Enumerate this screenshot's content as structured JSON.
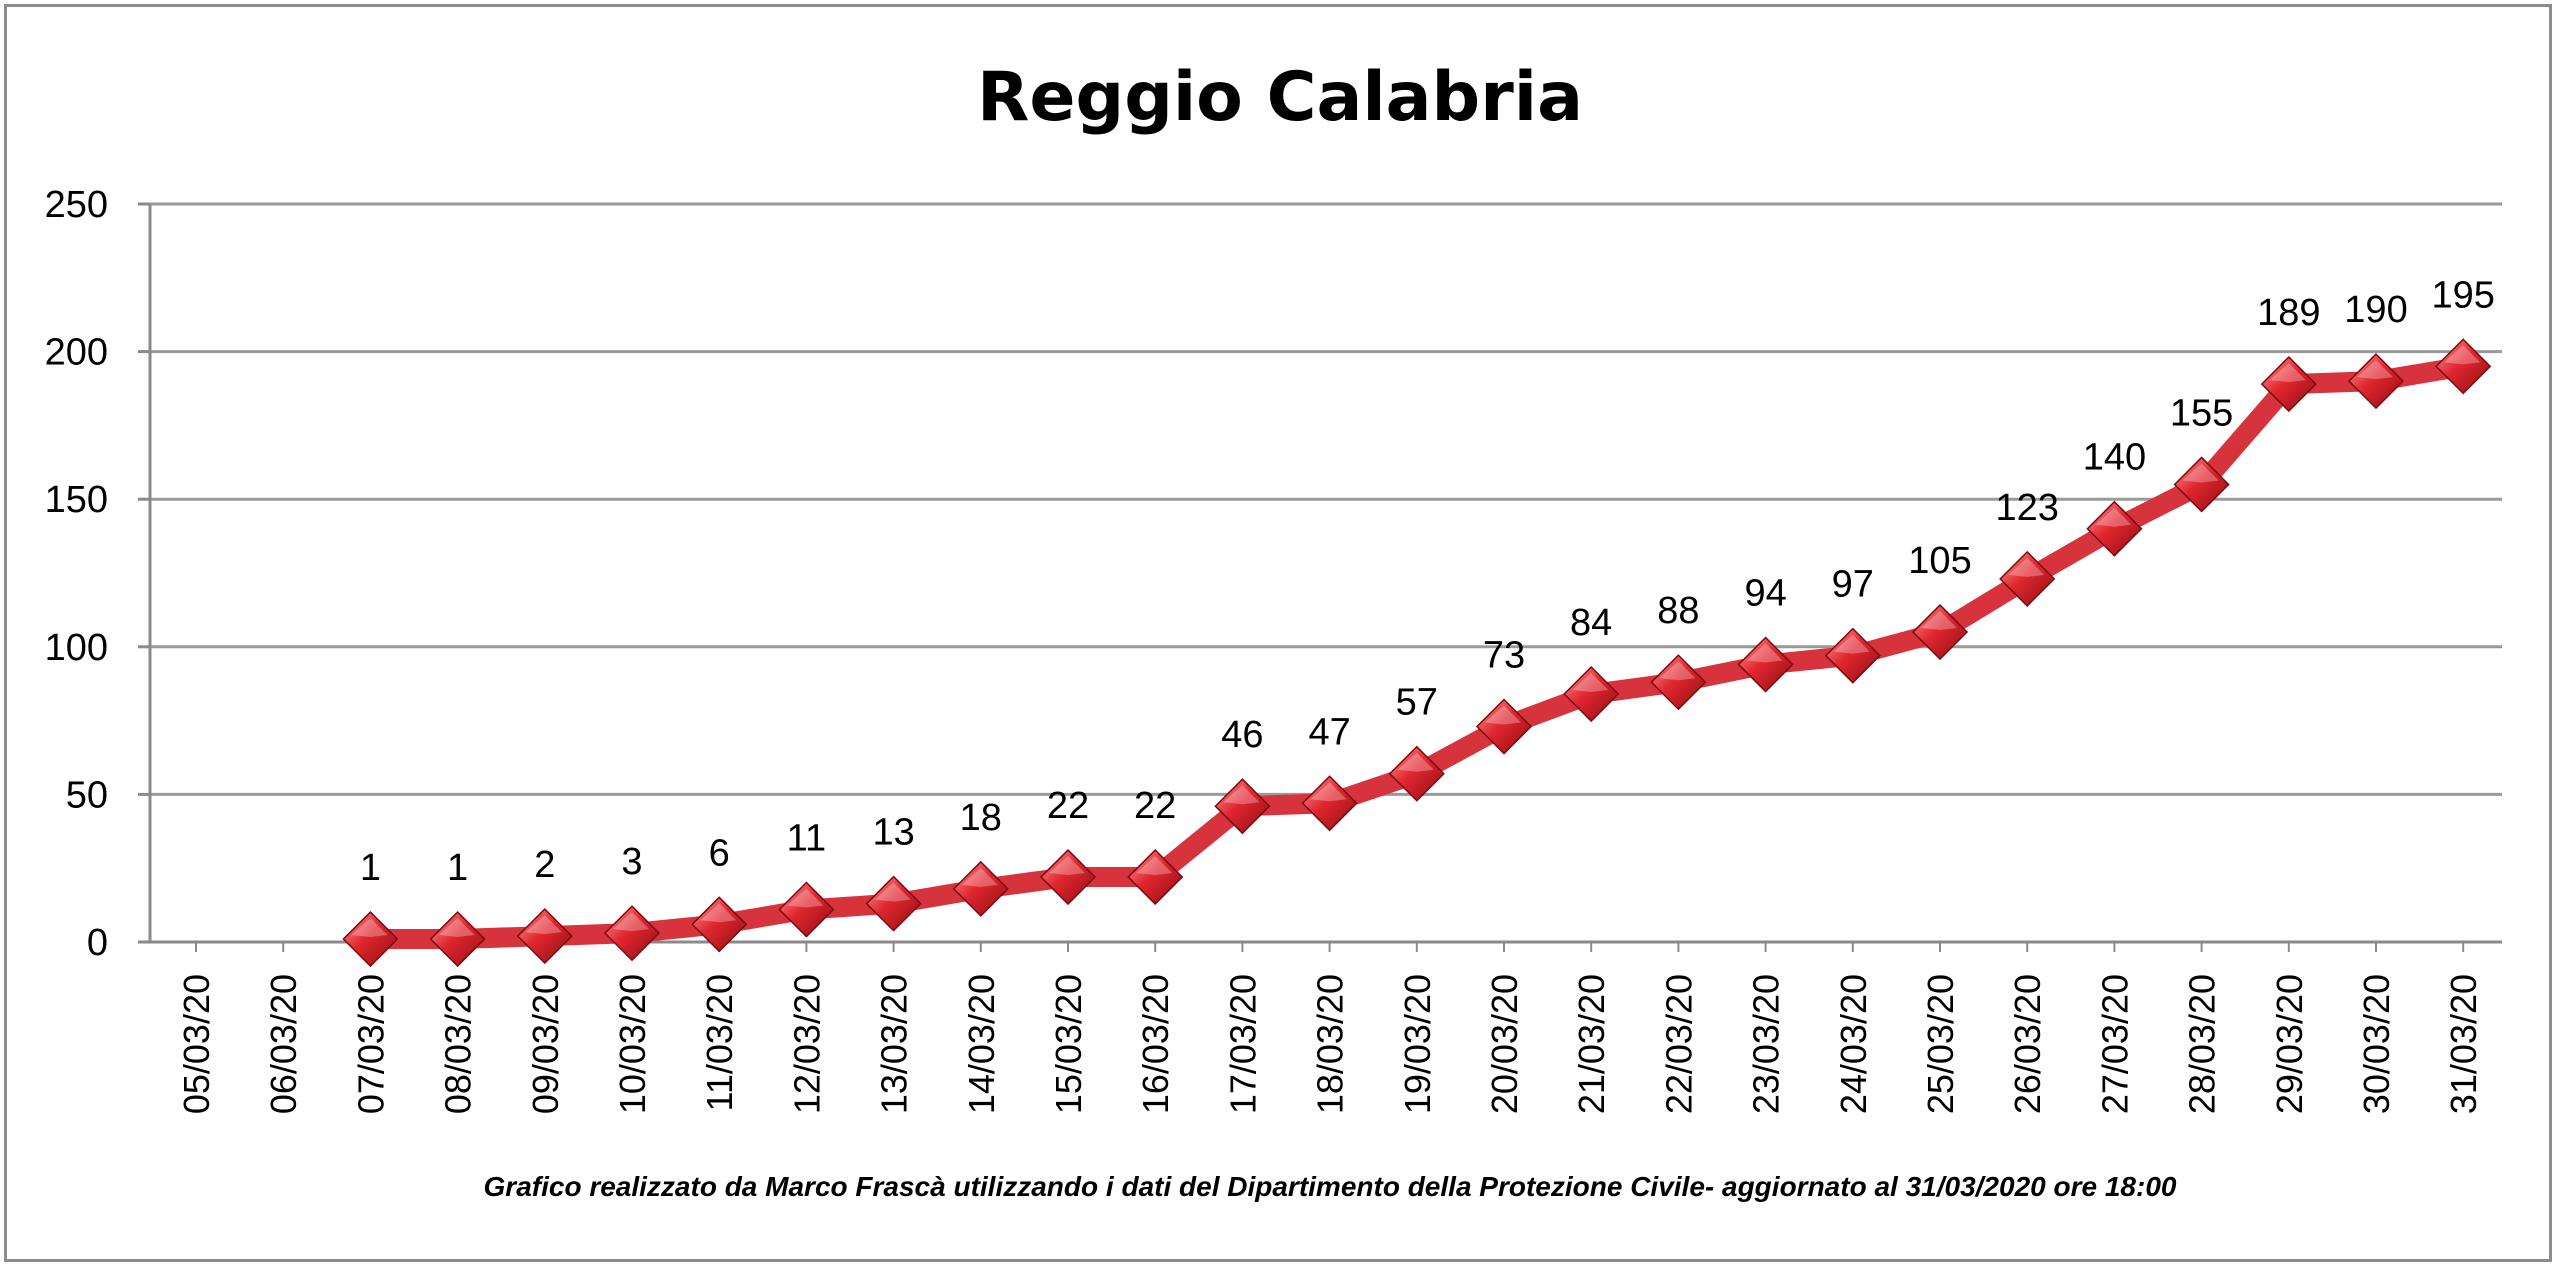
{
  "chart_data": {
    "type": "line",
    "title": "Reggio Calabria",
    "xlabel": "",
    "ylabel": "",
    "ylim": [
      0,
      250
    ],
    "yticks": [
      0,
      50,
      100,
      150,
      200,
      250
    ],
    "grid": true,
    "legend": "none",
    "categories": [
      "05/03/20",
      "06/03/20",
      "07/03/20",
      "08/03/20",
      "09/03/20",
      "10/03/20",
      "11/03/20",
      "12/03/20",
      "13/03/20",
      "14/03/20",
      "15/03/20",
      "16/03/20",
      "17/03/20",
      "18/03/20",
      "19/03/20",
      "20/03/20",
      "21/03/20",
      "22/03/20",
      "23/03/20",
      "24/03/20",
      "25/03/20",
      "26/03/20",
      "27/03/20",
      "28/03/20",
      "29/03/20",
      "30/03/20",
      "31/03/20"
    ],
    "series": [
      {
        "values": [
          null,
          null,
          1,
          1,
          2,
          3,
          6,
          11,
          13,
          18,
          22,
          22,
          46,
          47,
          57,
          73,
          84,
          88,
          94,
          97,
          105,
          123,
          140,
          155,
          189,
          190,
          195
        ],
        "color": "#d6333c",
        "marker": "diamond"
      }
    ],
    "note": "Grafico  realizzato da Marco Frascà  utilizzando i dati del Dipartimento  della Protezione Civile- aggiornato  al 31/03/2020 ore 18:00"
  }
}
